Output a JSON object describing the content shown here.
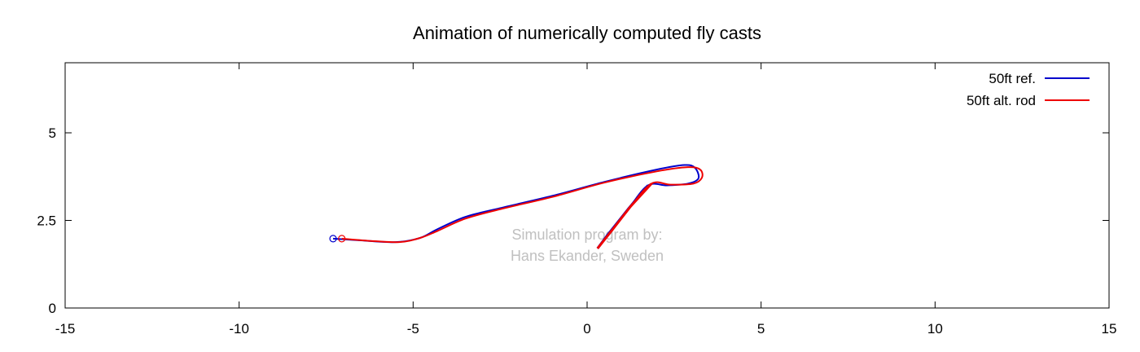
{
  "chart_data": {
    "type": "line",
    "title": "Animation of numerically computed fly casts",
    "xlabel": "",
    "ylabel": "",
    "xlim": [
      -15,
      15
    ],
    "ylim": [
      0,
      7
    ],
    "x_ticks": [
      -15,
      -10,
      -5,
      0,
      5,
      10,
      15
    ],
    "x_tick_labels": [
      "-15",
      "-10",
      "-5",
      "0",
      "5",
      "10",
      "15"
    ],
    "y_ticks": [
      0,
      2.5,
      5
    ],
    "y_tick_labels": [
      "0",
      "2.5",
      "5"
    ],
    "grid": false,
    "legend_position": "top-right",
    "annotation": {
      "lines": [
        "Simulation program by:",
        "Hans Ekander, Sweden"
      ],
      "x": 0,
      "y": 1.95,
      "color": "#c0c0c0"
    },
    "series": [
      {
        "name": "50ft ref.",
        "color": "#0000cc",
        "points": [
          [
            -7.3,
            1.98
          ],
          [
            -6.5,
            1.93
          ],
          [
            -5.5,
            1.88
          ],
          [
            -4.8,
            2.0
          ],
          [
            -4.3,
            2.25
          ],
          [
            -3.5,
            2.6
          ],
          [
            -2.5,
            2.85
          ],
          [
            -1.0,
            3.2
          ],
          [
            0.5,
            3.6
          ],
          [
            2.0,
            3.95
          ],
          [
            2.8,
            4.08
          ],
          [
            3.1,
            4.0
          ],
          [
            3.2,
            3.7
          ],
          [
            2.9,
            3.55
          ],
          [
            2.3,
            3.5
          ],
          [
            1.75,
            3.5
          ],
          [
            1.2,
            2.85
          ],
          [
            0.6,
            2.1
          ],
          [
            0.3,
            1.7
          ]
        ],
        "end_marker": [
          -7.3,
          1.98
        ]
      },
      {
        "name": "50ft alt. rod",
        "color": "#ee0000",
        "points": [
          [
            -7.05,
            1.98
          ],
          [
            -6.3,
            1.92
          ],
          [
            -5.4,
            1.88
          ],
          [
            -4.8,
            2.0
          ],
          [
            -4.3,
            2.2
          ],
          [
            -3.5,
            2.55
          ],
          [
            -2.5,
            2.82
          ],
          [
            -1.0,
            3.17
          ],
          [
            0.5,
            3.58
          ],
          [
            2.0,
            3.9
          ],
          [
            2.9,
            4.02
          ],
          [
            3.25,
            3.95
          ],
          [
            3.3,
            3.72
          ],
          [
            3.05,
            3.55
          ],
          [
            2.4,
            3.52
          ],
          [
            1.85,
            3.55
          ],
          [
            1.25,
            2.9
          ],
          [
            0.7,
            2.2
          ],
          [
            0.3,
            1.7
          ]
        ],
        "end_marker": [
          -7.05,
          1.98
        ]
      }
    ]
  }
}
